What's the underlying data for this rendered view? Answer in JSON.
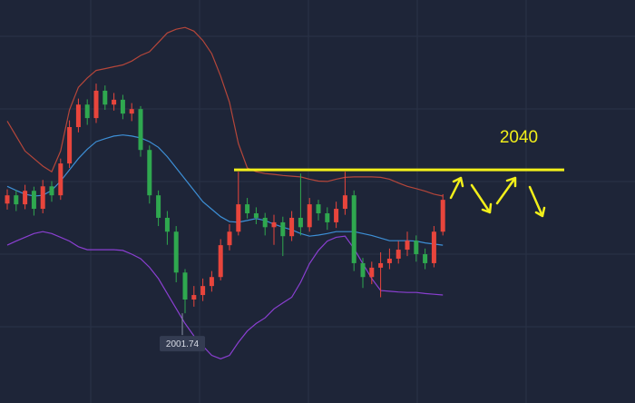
{
  "chart_data": {
    "type": "candlestick",
    "ylim": [
      1977.8,
      2085.3
    ],
    "up_color": "#e8453c",
    "down_color": "#2fa84f",
    "open": [
      2031.0,
      2033.2,
      2030.8,
      2034.4,
      2029.6,
      2035.6,
      2033.2,
      2041.7,
      2051.4,
      2057.4,
      2053.8,
      2061.1,
      2057.4,
      2058.7,
      2055.0,
      2056.2,
      2045.3,
      2033.2,
      2027.2,
      2023.5,
      2012.6,
      2005.4,
      2006.6,
      2009.0,
      2011.4,
      2019.9,
      2023.5,
      2030.8,
      2028.4,
      2027.2,
      2024.7,
      2026.0,
      2022.3,
      2027.2,
      2024.7,
      2030.8,
      2028.4,
      2026.0,
      2029.6,
      2033.2,
      2015.1,
      2011.4,
      2013.9,
      2015.1,
      2016.3,
      2018.7,
      2021.1,
      2017.5,
      2015.1,
      2023.5
    ],
    "high": [
      2034.8,
      2034.6,
      2036.0,
      2035.5,
      2037.3,
      2037.0,
      2043.0,
      2053.2,
      2059.0,
      2058.8,
      2063.0,
      2062.5,
      2060.5,
      2060.0,
      2057.8,
      2057.0,
      2046.5,
      2034.5,
      2029.0,
      2025.0,
      2013.5,
      2009.0,
      2011.0,
      2013.0,
      2021.5,
      2025.5,
      2039.5,
      2032.5,
      2030.0,
      2028.5,
      2028.0,
      2027.5,
      2029.0,
      2039.0,
      2032.5,
      2032.0,
      2030.0,
      2031.5,
      2039.5,
      2034.5,
      2016.5,
      2015.5,
      2018.0,
      2019.0,
      2021.0,
      2023.5,
      2022.5,
      2019.0,
      2025.0,
      2033.5
    ],
    "low": [
      2029.4,
      2029.0,
      2029.5,
      2027.8,
      2028.4,
      2031.5,
      2032.0,
      2040.5,
      2050.0,
      2052.0,
      2052.5,
      2056.0,
      2055.8,
      2053.5,
      2053.0,
      2043.5,
      2031.0,
      2025.0,
      2020.0,
      2010.0,
      2001.74,
      2003.5,
      2005.0,
      2007.5,
      2010.5,
      2018.5,
      2022.5,
      2027.0,
      2025.5,
      2022.5,
      2020.0,
      2017.0,
      2021.0,
      2022.5,
      2023.5,
      2026.5,
      2024.0,
      2024.5,
      2028.0,
      2013.0,
      2008.5,
      2009.5,
      2006.0,
      2013.5,
      2015.0,
      2017.0,
      2015.5,
      2013.5,
      2014.0,
      2022.5
    ],
    "close": [
      2033.2,
      2030.8,
      2034.4,
      2029.6,
      2035.6,
      2033.2,
      2041.7,
      2051.4,
      2057.4,
      2053.8,
      2061.1,
      2057.4,
      2058.7,
      2055.0,
      2056.2,
      2045.3,
      2033.2,
      2027.2,
      2023.5,
      2012.6,
      2005.4,
      2006.6,
      2009.0,
      2011.4,
      2019.9,
      2023.5,
      2030.8,
      2028.4,
      2027.2,
      2024.7,
      2026.0,
      2022.3,
      2027.2,
      2024.7,
      2030.8,
      2028.4,
      2026.0,
      2029.6,
      2033.2,
      2015.1,
      2011.4,
      2013.9,
      2015.1,
      2016.3,
      2018.7,
      2021.1,
      2017.5,
      2015.1,
      2023.5,
      2032.0
    ],
    "series": [
      {
        "color": "#b5463a",
        "values": [
          2053.0,
          2049,
          2045,
          2043,
          2041,
          2039.5,
          2045,
          2056,
          2062,
          2064.5,
          2066.5,
          2067,
          2067.5,
          2068,
          2069,
          2070.5,
          2071.5,
          2074,
          2076.5,
          2077.5,
          2078,
          2077,
          2074.5,
          2071,
          2065,
          2058,
          2047,
          2040.5,
          2039.5,
          2039,
          2038.8,
          2038.5,
          2038.3,
          2038.1,
          2037.5,
          2037,
          2036.9,
          2037.5,
          2038,
          2038.1,
          2038.1,
          2038.1,
          2038,
          2037.5,
          2036.5,
          2035.6,
          2035,
          2034.3,
          2033.5,
          2033
        ]
      },
      {
        "color": "#8a3fd1",
        "values": [
          2019.9,
          2021,
          2022,
          2023,
          2023.5,
          2023,
          2022,
          2021,
          2019.5,
          2018.7,
          2018.7,
          2018.7,
          2018.7,
          2018.5,
          2017.5,
          2016.3,
          2014,
          2011,
          2007,
          2003,
          1999,
          1995.7,
          1993,
          1990.5,
          1989.6,
          1990.5,
          1994,
          1997,
          1999,
          2000.5,
          2002.9,
          2004.5,
          2006,
          2010,
          2015,
          2018.5,
          2021,
          2022,
          2022.3,
          2019,
          2015,
          2011,
          2007.8,
          2007.6,
          2007.4,
          2007.3,
          2007.3,
          2007,
          2006.8,
          2006.6
        ]
      },
      {
        "color": "#3d8fd6",
        "values": [
          2035.6,
          2034.5,
          2033.5,
          2033,
          2033.2,
          2034.5,
          2037,
          2040,
          2043,
          2045.5,
          2047.5,
          2048.3,
          2049,
          2049.3,
          2049,
          2048.5,
          2047.5,
          2046,
          2043.5,
          2040.5,
          2037.5,
          2034.5,
          2031.5,
          2029.5,
          2027.5,
          2026.2,
          2026,
          2026.5,
          2027,
          2026.5,
          2025.5,
          2024.7,
          2024,
          2023,
          2022.3,
          2022.6,
          2023,
          2023.5,
          2023.5,
          2023.5,
          2023,
          2022.5,
          2021.8,
          2021.1,
          2021.1,
          2021.1,
          2021,
          2020.5,
          2020.2,
          2019.9
        ]
      }
    ],
    "annotations": [
      {
        "text": "2040",
        "value": 2040,
        "color": "#f2ef1a"
      },
      {
        "text": "2001.74",
        "value": 2001.74
      }
    ]
  }
}
